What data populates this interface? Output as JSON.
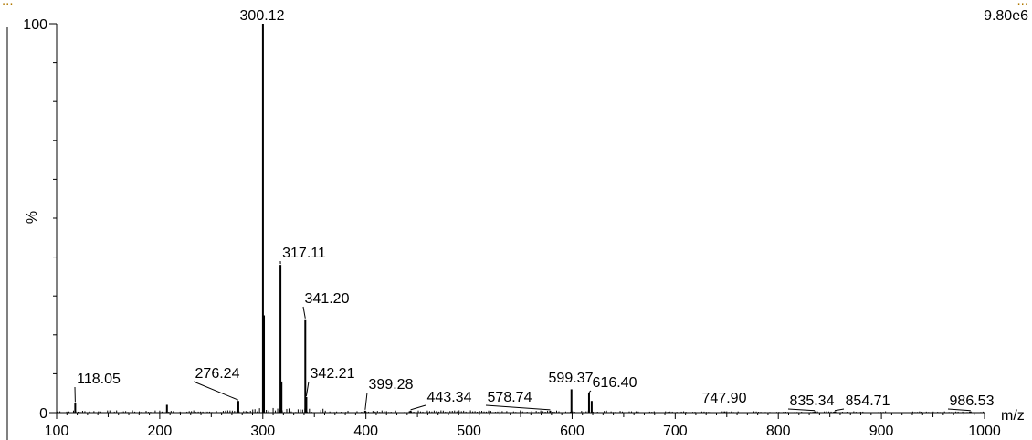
{
  "header": {
    "left_text": "...",
    "right_text": "...",
    "max_intensity": "9.80e6"
  },
  "chart_data": {
    "type": "bar",
    "title": "",
    "xlabel": "m/z",
    "ylabel": "%",
    "xlim": [
      100,
      1000
    ],
    "ylim": [
      0,
      100
    ],
    "x_ticks": [
      100,
      200,
      300,
      400,
      500,
      600,
      700,
      800,
      900,
      1000
    ],
    "y_ticks": [
      0,
      100
    ],
    "grid": false,
    "legend": "none",
    "peaks": [
      {
        "mz": 118.05,
        "intensity": 2.5,
        "label": "118.05"
      },
      {
        "mz": 207.0,
        "intensity": 2.0,
        "label": ""
      },
      {
        "mz": 276.24,
        "intensity": 3.0,
        "label": "276.24"
      },
      {
        "mz": 300.12,
        "intensity": 100,
        "label": "300.12"
      },
      {
        "mz": 301.1,
        "intensity": 25,
        "label": ""
      },
      {
        "mz": 317.11,
        "intensity": 38,
        "label": "317.11"
      },
      {
        "mz": 318.1,
        "intensity": 8,
        "label": ""
      },
      {
        "mz": 341.2,
        "intensity": 24,
        "label": "341.20"
      },
      {
        "mz": 342.21,
        "intensity": 4,
        "label": "342.21"
      },
      {
        "mz": 399.28,
        "intensity": 0.5,
        "label": "399.28"
      },
      {
        "mz": 443.34,
        "intensity": 0.5,
        "label": "443.34"
      },
      {
        "mz": 578.74,
        "intensity": 0.5,
        "label": "578.74"
      },
      {
        "mz": 599.37,
        "intensity": 6,
        "label": "599.37"
      },
      {
        "mz": 616.4,
        "intensity": 5,
        "label": "616.40"
      },
      {
        "mz": 619.0,
        "intensity": 3,
        "label": ""
      },
      {
        "mz": 747.9,
        "intensity": 0.3,
        "label": "747.90"
      },
      {
        "mz": 835.34,
        "intensity": 0.3,
        "label": "835.34"
      },
      {
        "mz": 854.71,
        "intensity": 0.3,
        "label": "854.71"
      },
      {
        "mz": 986.53,
        "intensity": 0.3,
        "label": "986.53"
      }
    ]
  }
}
